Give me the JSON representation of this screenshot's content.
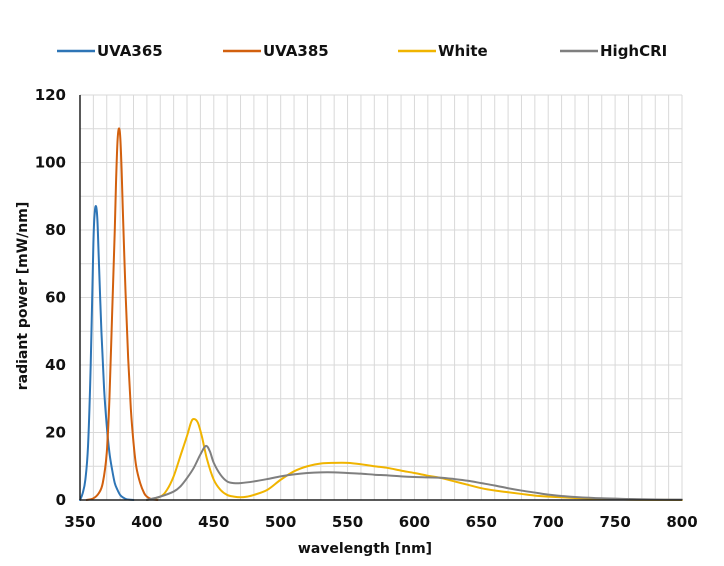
{
  "chart_data": {
    "type": "line",
    "title": "",
    "xlabel": "wavelength [nm]",
    "ylabel": "radiant power [mW/nm]",
    "xlim": [
      350,
      800
    ],
    "ylim": [
      0,
      120
    ],
    "x_ticks": [
      350,
      400,
      450,
      500,
      550,
      600,
      650,
      700,
      750,
      800
    ],
    "y_ticks": [
      0,
      20,
      40,
      60,
      80,
      100,
      120
    ],
    "x_minor_step": 10,
    "y_minor_step": 10,
    "grid": true,
    "legend_position": "top",
    "series": [
      {
        "name": "UVA365",
        "color": "#2e75b6",
        "points": [
          [
            350,
            0
          ],
          [
            352,
            2
          ],
          [
            354,
            6
          ],
          [
            356,
            16
          ],
          [
            358,
            40
          ],
          [
            360,
            76
          ],
          [
            361,
            85
          ],
          [
            362,
            87
          ],
          [
            363,
            83
          ],
          [
            364,
            72
          ],
          [
            366,
            50
          ],
          [
            368,
            33
          ],
          [
            370,
            22
          ],
          [
            372,
            14
          ],
          [
            374,
            9
          ],
          [
            376,
            5
          ],
          [
            378,
            3
          ],
          [
            380,
            1.5
          ],
          [
            382,
            0.8
          ],
          [
            385,
            0.2
          ],
          [
            390,
            0
          ]
        ]
      },
      {
        "name": "UVA385",
        "color": "#d2600e",
        "points": [
          [
            355,
            0
          ],
          [
            360,
            0.5
          ],
          [
            364,
            2
          ],
          [
            367,
            5
          ],
          [
            370,
            14
          ],
          [
            372,
            30
          ],
          [
            374,
            55
          ],
          [
            376,
            80
          ],
          [
            377,
            95
          ],
          [
            378,
            106
          ],
          [
            379,
            110
          ],
          [
            380,
            108
          ],
          [
            381,
            99
          ],
          [
            382,
            86
          ],
          [
            384,
            62
          ],
          [
            386,
            42
          ],
          [
            388,
            27
          ],
          [
            390,
            17
          ],
          [
            392,
            10
          ],
          [
            395,
            5
          ],
          [
            398,
            2
          ],
          [
            400,
            1
          ],
          [
            403,
            0.3
          ],
          [
            408,
            0
          ]
        ]
      },
      {
        "name": "White",
        "color": "#f0b400",
        "points": [
          [
            400,
            0
          ],
          [
            410,
            1
          ],
          [
            415,
            3
          ],
          [
            420,
            7
          ],
          [
            425,
            13
          ],
          [
            430,
            19
          ],
          [
            433,
            23
          ],
          [
            435,
            24
          ],
          [
            438,
            23
          ],
          [
            441,
            19
          ],
          [
            445,
            12
          ],
          [
            450,
            6
          ],
          [
            455,
            3
          ],
          [
            460,
            1.5
          ],
          [
            465,
            1
          ],
          [
            470,
            0.8
          ],
          [
            475,
            1
          ],
          [
            480,
            1.5
          ],
          [
            490,
            3
          ],
          [
            500,
            6
          ],
          [
            510,
            8.5
          ],
          [
            520,
            10
          ],
          [
            530,
            10.8
          ],
          [
            540,
            11
          ],
          [
            550,
            11
          ],
          [
            560,
            10.6
          ],
          [
            570,
            10
          ],
          [
            580,
            9.5
          ],
          [
            590,
            8.7
          ],
          [
            600,
            8
          ],
          [
            610,
            7.2
          ],
          [
            620,
            6.5
          ],
          [
            630,
            5.5
          ],
          [
            640,
            4.5
          ],
          [
            650,
            3.5
          ],
          [
            660,
            2.8
          ],
          [
            670,
            2.3
          ],
          [
            680,
            1.8
          ],
          [
            690,
            1.3
          ],
          [
            700,
            1
          ],
          [
            720,
            0.6
          ],
          [
            740,
            0.3
          ],
          [
            760,
            0.1
          ],
          [
            780,
            0.05
          ],
          [
            800,
            0
          ]
        ]
      },
      {
        "name": "HighCRI",
        "color": "#7f7f7f",
        "points": [
          [
            400,
            0
          ],
          [
            410,
            1
          ],
          [
            420,
            2.5
          ],
          [
            425,
            4
          ],
          [
            430,
            6.5
          ],
          [
            435,
            9.5
          ],
          [
            440,
            13.5
          ],
          [
            444,
            16
          ],
          [
            447,
            14.5
          ],
          [
            450,
            11
          ],
          [
            455,
            7.5
          ],
          [
            460,
            5.5
          ],
          [
            465,
            5
          ],
          [
            470,
            5
          ],
          [
            480,
            5.5
          ],
          [
            490,
            6.2
          ],
          [
            500,
            7
          ],
          [
            510,
            7.6
          ],
          [
            520,
            8
          ],
          [
            530,
            8.2
          ],
          [
            540,
            8.2
          ],
          [
            550,
            8
          ],
          [
            560,
            7.8
          ],
          [
            570,
            7.5
          ],
          [
            580,
            7.3
          ],
          [
            590,
            7
          ],
          [
            600,
            6.8
          ],
          [
            610,
            6.7
          ],
          [
            620,
            6.6
          ],
          [
            630,
            6.2
          ],
          [
            640,
            5.7
          ],
          [
            650,
            5
          ],
          [
            660,
            4.3
          ],
          [
            670,
            3.5
          ],
          [
            680,
            2.8
          ],
          [
            690,
            2.2
          ],
          [
            700,
            1.6
          ],
          [
            710,
            1.2
          ],
          [
            720,
            0.9
          ],
          [
            740,
            0.5
          ],
          [
            760,
            0.3
          ],
          [
            780,
            0.15
          ],
          [
            800,
            0.1
          ]
        ]
      }
    ]
  }
}
